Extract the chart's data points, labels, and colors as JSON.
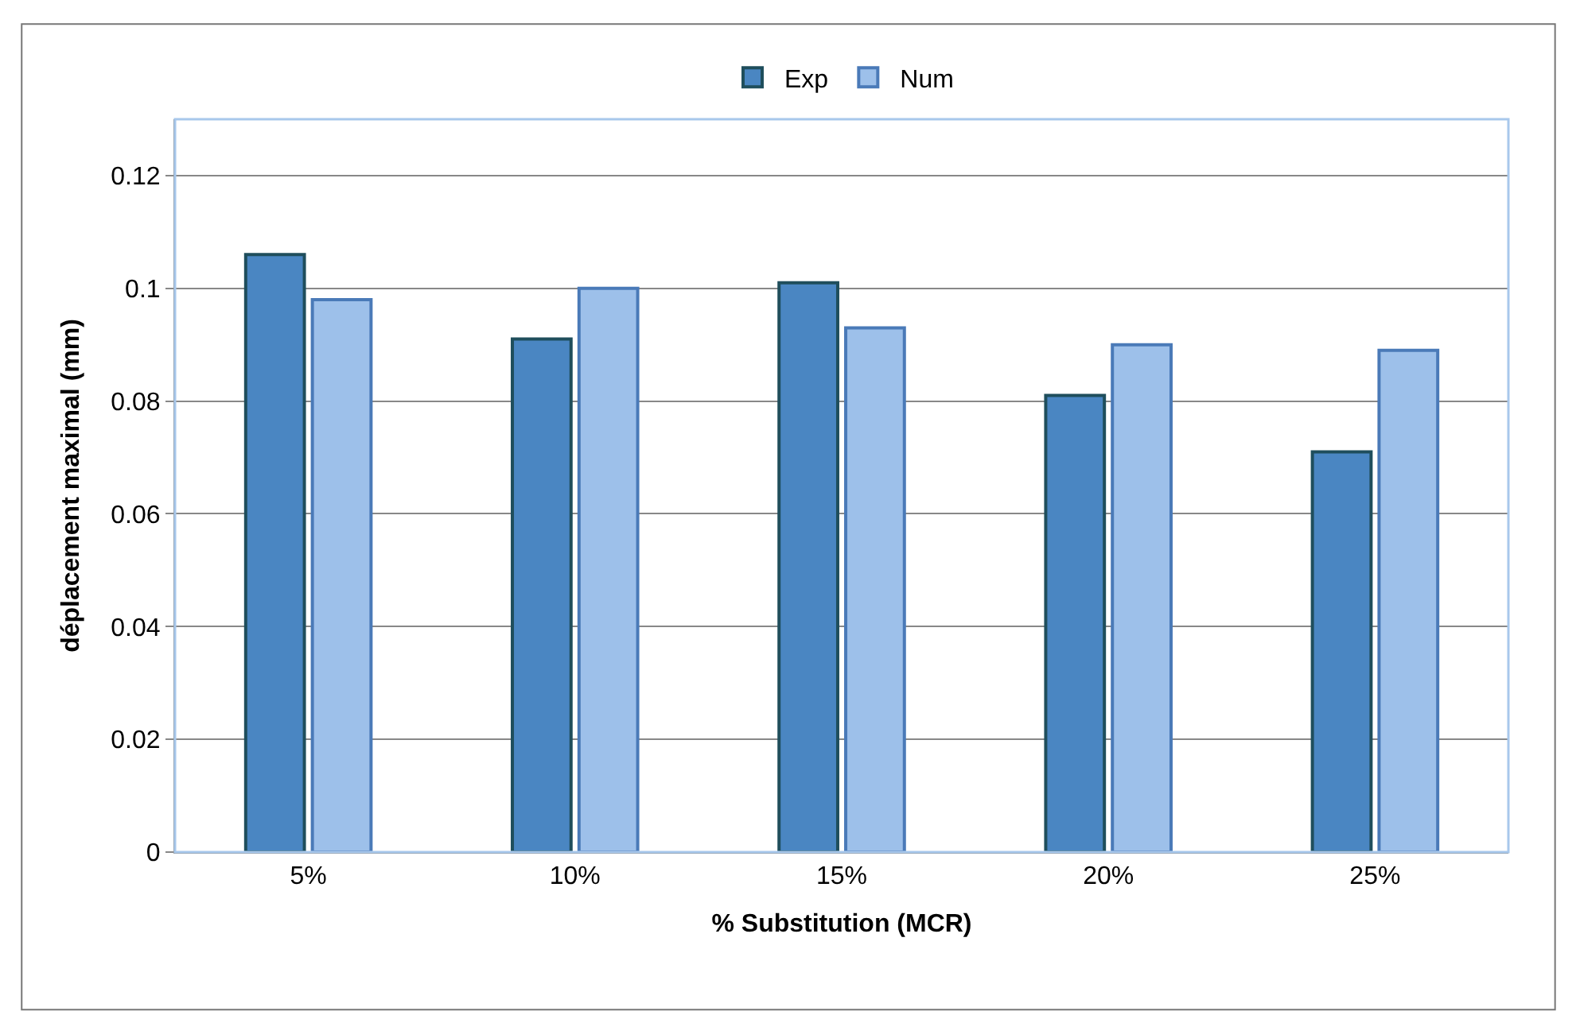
{
  "chart_data": {
    "type": "bar",
    "xlabel": "% Substitution (MCR)",
    "ylabel": "déplacement maximal (mm)",
    "categories": [
      "5%",
      "10%",
      "15%",
      "20%",
      "25%"
    ],
    "series": [
      {
        "name": "Exp",
        "color": "#4a86c2",
        "values": [
          0.106,
          0.091,
          0.101,
          0.081,
          0.071
        ]
      },
      {
        "name": "Num",
        "color": "#9dc0ea",
        "values": [
          0.098,
          0.1,
          0.093,
          0.09,
          0.089
        ]
      }
    ],
    "ylim": [
      0,
      0.13
    ],
    "yticks": [
      0,
      0.02,
      0.04,
      0.06,
      0.08,
      0.1,
      0.12
    ],
    "grid": "y",
    "legend": "top"
  }
}
